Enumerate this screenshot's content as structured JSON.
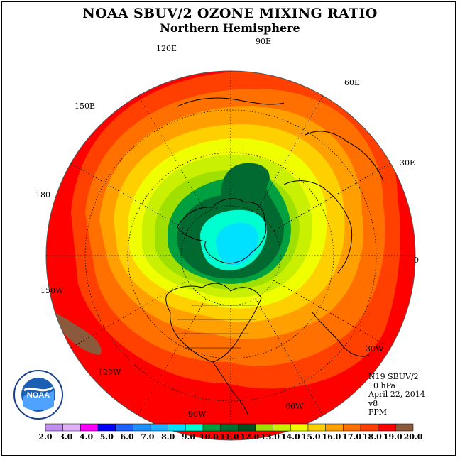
{
  "title": "NOAA SBUV/2 OZONE MIXING RATIO",
  "subtitle": "Northern Hemisphere",
  "longitude_labels": [
    "90E",
    "60E",
    "30E",
    "0",
    "30W",
    "60W",
    "90W",
    "120W",
    "150W",
    "180",
    "150E",
    "120E"
  ],
  "info": {
    "satellite": "N19 SBUV/2",
    "pressure": "10 hPa",
    "date": "April 22, 2014",
    "version": "v8",
    "units": "PPM"
  },
  "logo": {
    "text": "NOAA",
    "ring_text": "NATIONAL OCEANIC AND ATMOSPHERIC ADMINISTRATION · U.S. DEPARTMENT OF COMMERCE"
  },
  "colorbar": {
    "labels": [
      "2.0",
      "3.0",
      "4.0",
      "5.0",
      "6.0",
      "7.0",
      "8.0",
      "9.0",
      "10.0",
      "11.0",
      "12.0",
      "13.0",
      "14.0",
      "15.0",
      "16.0",
      "17.0",
      "18.0",
      "19.0",
      "20.0"
    ],
    "colors": [
      "#c090f0",
      "#e0b0ff",
      "#ff00ff",
      "#0000ff",
      "#2060ff",
      "#2090ff",
      "#20b0ff",
      "#00e0ff",
      "#00ffd0",
      "#00a040",
      "#007030",
      "#005020",
      "#a0e000",
      "#c8f000",
      "#f0ff00",
      "#ffd000",
      "#ffa000",
      "#ff7000",
      "#ff4000",
      "#ff0000",
      "#8b5a3c"
    ]
  },
  "map_data": {
    "projection": "north polar stereographic",
    "contour_levels_ppm": [
      9.0,
      10.0,
      11.0,
      12.0,
      13.0,
      14.0,
      15.0,
      16.0,
      17.0,
      18.0,
      19.0,
      20.0
    ],
    "max_region": "near North Pole / Greenland (9-10 ppm)",
    "outer_region": "equatorial belt (18-20 ppm)"
  }
}
